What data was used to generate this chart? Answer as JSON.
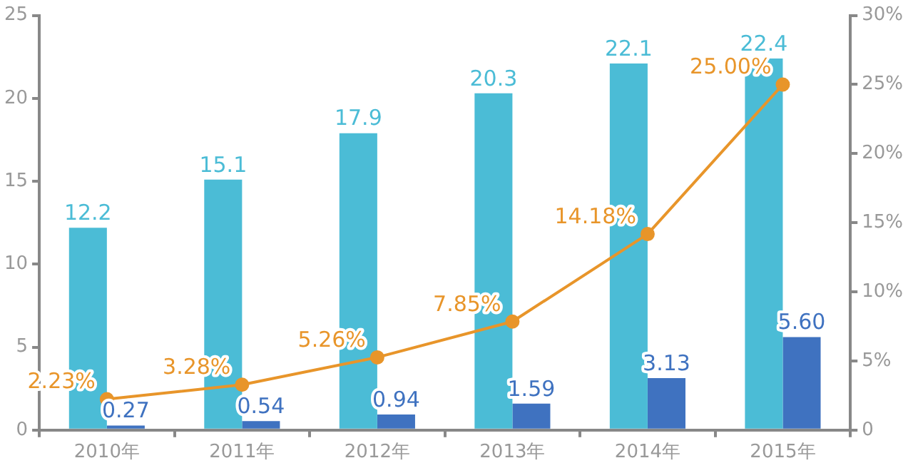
{
  "chart_data": {
    "type": "bar",
    "categories": [
      "2010年",
      "2011年",
      "2012年",
      "2013年",
      "2014年",
      "2015年"
    ],
    "series": [
      {
        "color": "#4bbcd6",
        "values": [
          12.2,
          15.1,
          17.9,
          20.3,
          22.1,
          22.4
        ],
        "value_labels": [
          "12.2",
          "15.1",
          "17.9",
          "20.3",
          "22.1",
          "22.4"
        ]
      },
      {
        "color": "#3f72c0",
        "values": [
          0.27,
          0.54,
          0.94,
          1.59,
          3.13,
          5.6
        ],
        "value_labels": [
          "0.27",
          "0.54",
          "0.94",
          "1.59",
          "3.13",
          "5.60"
        ]
      },
      {
        "type": "line",
        "axis": "y2",
        "color": "#e8952a",
        "values": [
          2.23,
          3.28,
          5.26,
          7.85,
          14.18,
          25.0
        ],
        "value_labels": [
          "2.23%",
          "3.28%",
          "5.26%",
          "7.85%",
          "14.18%",
          "25.00%"
        ]
      }
    ],
    "ylim": [
      0,
      25
    ],
    "yticks": [
      0,
      5,
      10,
      15,
      20,
      25
    ],
    "y2lim": [
      0,
      30
    ],
    "y2ticks": [
      {
        "value": 0,
        "label": "0"
      },
      {
        "value": 5,
        "label": "5%"
      },
      {
        "value": 10,
        "label": "10%"
      },
      {
        "value": 15,
        "label": "15%"
      },
      {
        "value": 20,
        "label": "20%"
      },
      {
        "value": 25,
        "label": "25%"
      },
      {
        "value": 30,
        "label": "30%"
      }
    ],
    "grid": false,
    "legend": false,
    "marker": "circle",
    "line_style": "solid"
  }
}
